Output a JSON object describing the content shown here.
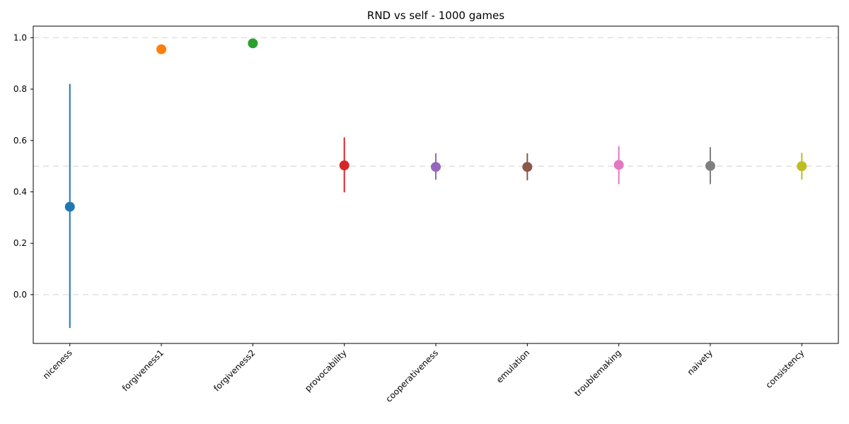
{
  "chart_data": {
    "type": "scatter",
    "title": "RND vs self - 1000 games",
    "xlabel": "",
    "ylabel": "",
    "categories": [
      "niceness",
      "forgiveness1",
      "forgiveness2",
      "provocability",
      "cooperativeness",
      "emulation",
      "troublemaking",
      "naivety",
      "consistency"
    ],
    "means": [
      0.342,
      0.955,
      0.978,
      0.503,
      0.497,
      0.497,
      0.505,
      0.501,
      0.5
    ],
    "err_low": [
      -0.13,
      0.955,
      0.978,
      0.398,
      0.447,
      0.445,
      0.43,
      0.43,
      0.448
    ],
    "err_high": [
      0.82,
      0.955,
      0.978,
      0.612,
      0.55,
      0.55,
      0.578,
      0.574,
      0.552
    ],
    "colors": [
      "#1f77b4",
      "#ff7f0e",
      "#2ca02c",
      "#d62728",
      "#9467bd",
      "#8c564b",
      "#e377c2",
      "#7f7f7f",
      "#bcbd22"
    ],
    "ylim": [
      -0.19,
      1.045
    ],
    "yticks": [
      0.0,
      0.2,
      0.4,
      0.6,
      0.8,
      1.0
    ],
    "ytick_labels": [
      "0.0",
      "0.2",
      "0.4",
      "0.6",
      "0.8",
      "1.0"
    ],
    "reference_lines": [
      0.0,
      0.5,
      1.0
    ],
    "grid": false,
    "legend": "none"
  }
}
